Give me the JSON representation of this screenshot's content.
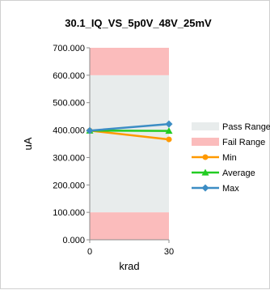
{
  "chart_data": {
    "type": "line",
    "title": "30.1_IQ_VS_5p0V_48V_25mV",
    "xlabel": "krad",
    "ylabel": "uA",
    "categories": [
      "0",
      "30"
    ],
    "ylim": [
      0,
      700
    ],
    "y_ticks": [
      "0.000",
      "100.000",
      "200.000",
      "300.000",
      "400.000",
      "500.000",
      "600.000",
      "700.000"
    ],
    "bands": [
      {
        "name": "Pass Range",
        "from": 100,
        "to": 600,
        "color": "#e8ecec"
      },
      {
        "name": "Fail Range",
        "from": 0,
        "to": 100,
        "color": "#fbbcbc"
      },
      {
        "name": "Fail Range",
        "from": 600,
        "to": 700,
        "color": "#fbbcbc"
      }
    ],
    "series": [
      {
        "name": "Min",
        "values": [
          398,
          366
        ],
        "color": "#ff9900"
      },
      {
        "name": "Average",
        "values": [
          398,
          397
        ],
        "color": "#22cc22"
      },
      {
        "name": "Max",
        "values": [
          398,
          422
        ],
        "color": "#3c8dc4"
      }
    ],
    "legend_position": "right",
    "grid": false
  }
}
